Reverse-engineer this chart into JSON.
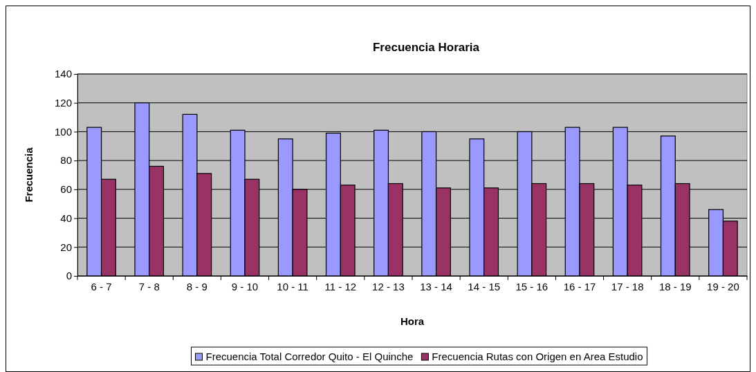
{
  "chart_data": {
    "type": "bar",
    "title": "Frecuencia Horaria",
    "xlabel": "Hora",
    "ylabel": "Frecuencia",
    "categories": [
      "6 - 7",
      "7 - 8",
      "8 - 9",
      "9 - 10",
      "10 - 11",
      "11 - 12",
      "12 - 13",
      "13 - 14",
      "14 - 15",
      "15 - 16",
      "16 - 17",
      "17 - 18",
      "18 - 19",
      "19 - 20"
    ],
    "series": [
      {
        "name": "Frecuencia Total Corredor Quito - El Quinche",
        "color": "#9999ff",
        "values": [
          103,
          120,
          112,
          101,
          95,
          99,
          101,
          100,
          95,
          100,
          103,
          103,
          97,
          46
        ]
      },
      {
        "name": "Frecuencia Rutas con Origen en Area Estudio",
        "color": "#993366",
        "values": [
          67,
          76,
          71,
          67,
          60,
          63,
          64,
          61,
          61,
          64,
          64,
          63,
          64,
          38
        ]
      }
    ],
    "ylim": [
      0,
      140
    ],
    "yticks": [
      0,
      20,
      40,
      60,
      80,
      100,
      120,
      140
    ],
    "grid": "y",
    "legend": "bottom"
  }
}
